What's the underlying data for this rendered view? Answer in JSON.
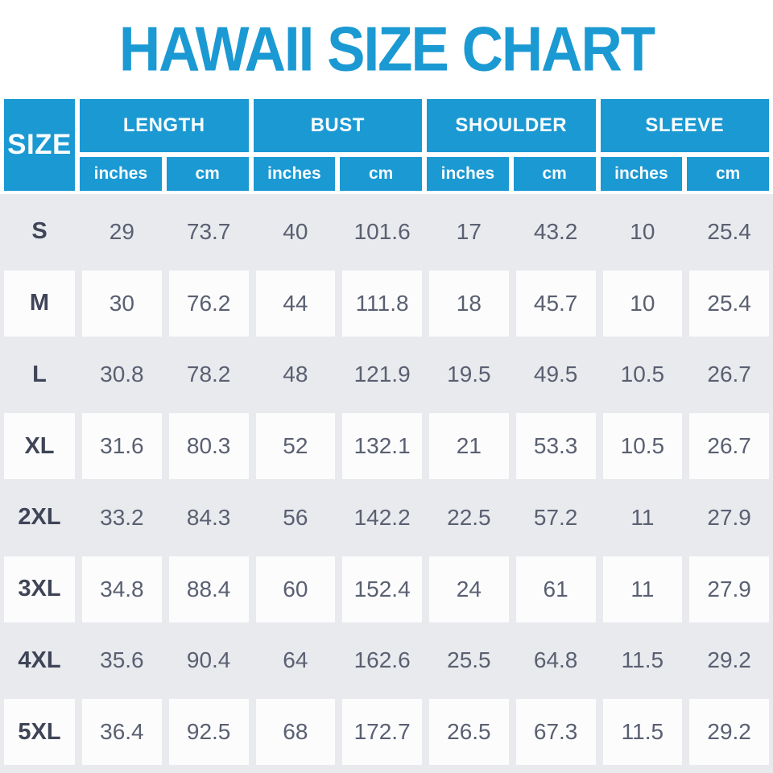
{
  "title": "HAWAII SIZE CHART",
  "colors": {
    "accent_blue": "#1B99D3",
    "row_gray": "#E8EAEE",
    "row_white": "#FCFCFD",
    "value_text": "#5A6071",
    "size_label_text": "#3F4557",
    "header_text": "#FFFFFF"
  },
  "chart_data": {
    "type": "table",
    "title": "HAWAII SIZE CHART",
    "corner_label": "SIZE",
    "column_groups": [
      {
        "label": "LENGTH",
        "sub": [
          "inches",
          "cm"
        ]
      },
      {
        "label": "BUST",
        "sub": [
          "inches",
          "cm"
        ]
      },
      {
        "label": "SHOULDER",
        "sub": [
          "inches",
          "cm"
        ]
      },
      {
        "label": "SLEEVE",
        "sub": [
          "inches",
          "cm"
        ]
      }
    ],
    "rows": [
      {
        "size": "S",
        "values": [
          "29",
          "73.7",
          "40",
          "101.6",
          "17",
          "43.2",
          "10",
          "25.4"
        ]
      },
      {
        "size": "M",
        "values": [
          "30",
          "76.2",
          "44",
          "111.8",
          "18",
          "45.7",
          "10",
          "25.4"
        ]
      },
      {
        "size": "L",
        "values": [
          "30.8",
          "78.2",
          "48",
          "121.9",
          "19.5",
          "49.5",
          "10.5",
          "26.7"
        ]
      },
      {
        "size": "XL",
        "values": [
          "31.6",
          "80.3",
          "52",
          "132.1",
          "21",
          "53.3",
          "10.5",
          "26.7"
        ]
      },
      {
        "size": "2XL",
        "values": [
          "33.2",
          "84.3",
          "56",
          "142.2",
          "22.5",
          "57.2",
          "11",
          "27.9"
        ]
      },
      {
        "size": "3XL",
        "values": [
          "34.8",
          "88.4",
          "60",
          "152.4",
          "24",
          "61",
          "11",
          "27.9"
        ]
      },
      {
        "size": "4XL",
        "values": [
          "35.6",
          "90.4",
          "64",
          "162.6",
          "25.5",
          "64.8",
          "11.5",
          "29.2"
        ]
      },
      {
        "size": "5XL",
        "values": [
          "36.4",
          "92.5",
          "68",
          "172.7",
          "26.5",
          "67.3",
          "11.5",
          "29.2"
        ]
      }
    ]
  }
}
